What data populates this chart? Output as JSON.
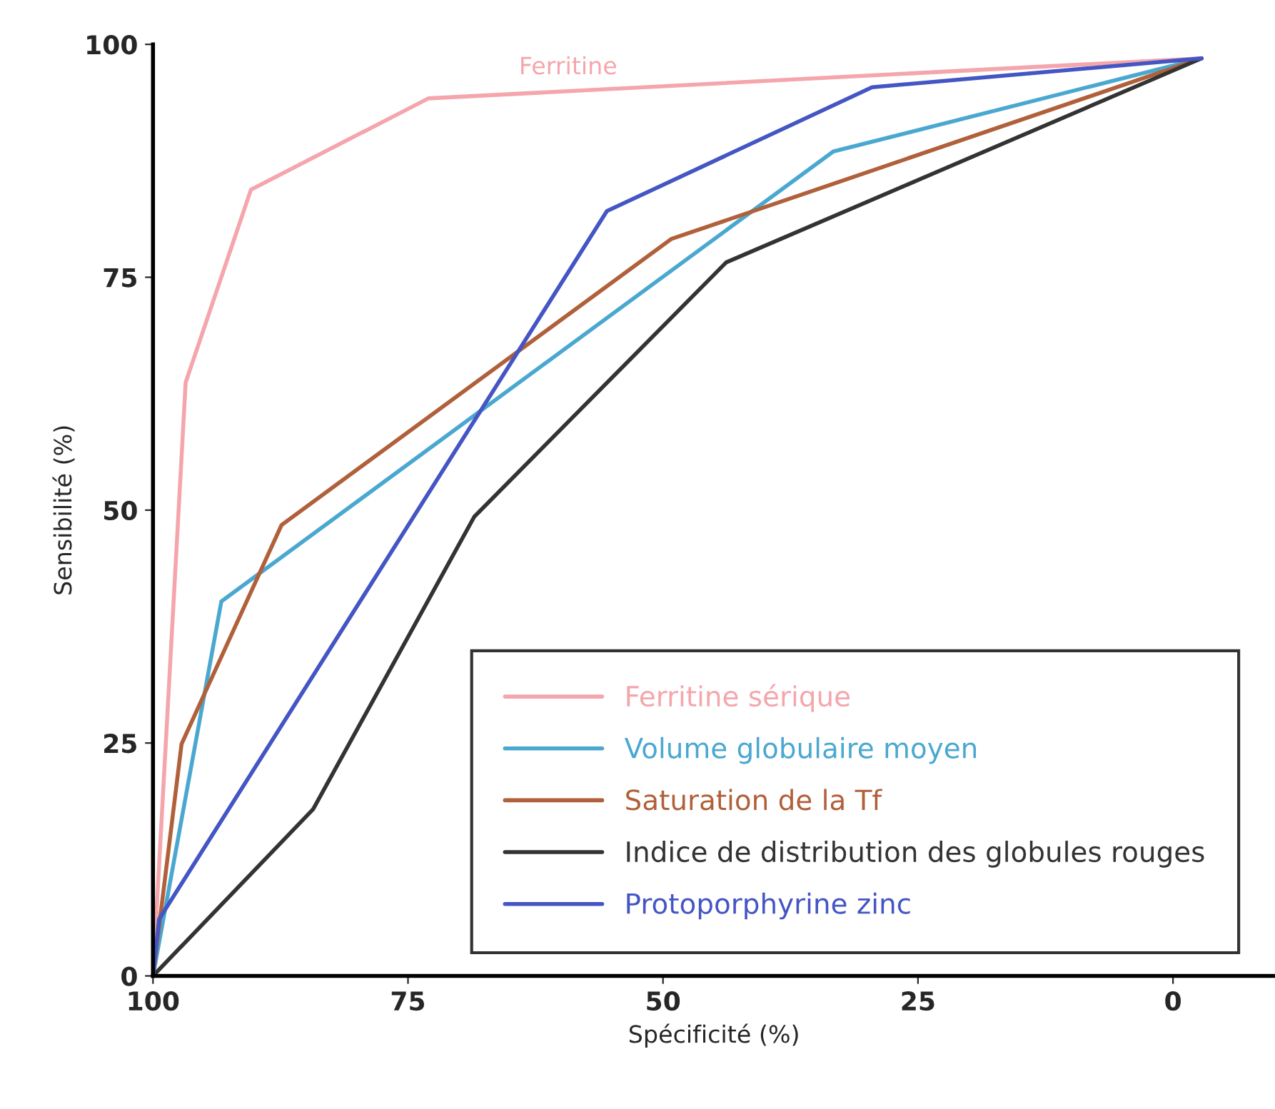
{
  "chart_data": {
    "type": "line",
    "xlabel": "Spécificité (%)",
    "ylabel": "Sensibilité (%)",
    "xlim": [
      100,
      -10
    ],
    "ylim": [
      0,
      100
    ],
    "xticks": [
      100,
      75,
      50,
      25,
      0
    ],
    "yticks": [
      0,
      25,
      50,
      75,
      100
    ],
    "grid": false,
    "legend": "bottom right",
    "marker": "none",
    "line_style": "solid",
    "annotations": [
      "Ferritine"
    ],
    "series": [
      {
        "name": "Ferritine sérique",
        "color": "#f4a6ac",
        "x": [
          100,
          96.8,
          90.4,
          73,
          -2.8
        ],
        "values": [
          0,
          63.7,
          84.4,
          94.2,
          98.5
        ]
      },
      {
        "name": "Volume globulaire moyen",
        "color": "#4aa8d0",
        "x": [
          100,
          93.3,
          33.3,
          -2.8
        ],
        "values": [
          0,
          40.2,
          88.5,
          98.5
        ]
      },
      {
        "name": "Saturation de la Tf",
        "color": "#b0603a",
        "x": [
          100,
          97.2,
          87.4,
          49.2,
          -2.8
        ],
        "values": [
          0,
          24.9,
          48.4,
          79.1,
          98.5
        ]
      },
      {
        "name": "Indice de distribution des globules rouges",
        "color": "#333333",
        "x": [
          100,
          84.3,
          68.5,
          43.8,
          -2.8
        ],
        "values": [
          0,
          17.9,
          49.3,
          76.6,
          98.5
        ]
      },
      {
        "name": "Protoporphyrine zinc",
        "color": "#4455c4",
        "x": [
          100,
          99.4,
          55.5,
          29.5,
          -2.8
        ],
        "values": [
          0,
          6.1,
          82.1,
          95.4,
          98.5
        ]
      }
    ]
  }
}
